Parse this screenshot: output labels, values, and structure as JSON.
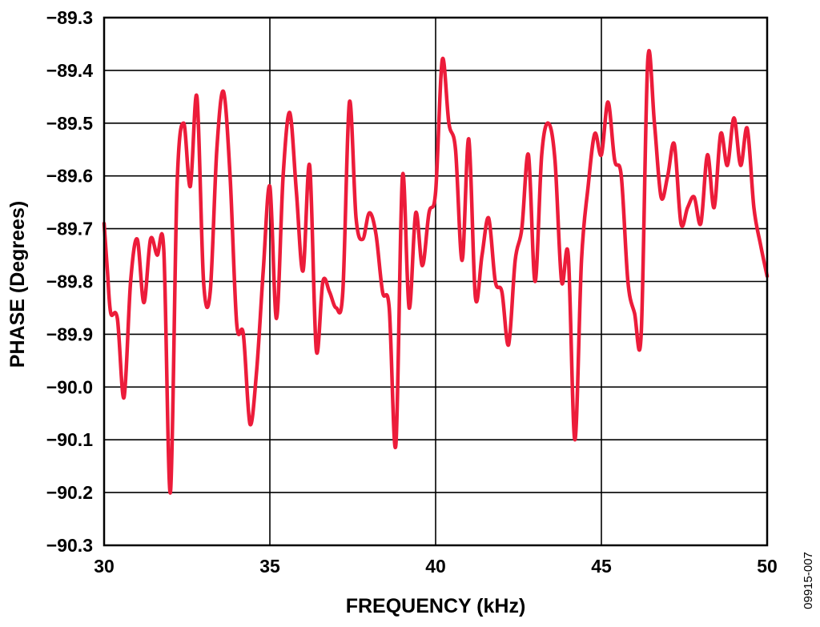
{
  "chart_data": {
    "type": "line",
    "title": "",
    "xlabel": "FREQUENCY (kHz)",
    "ylabel": "PHASE (Degrees)",
    "xlim": [
      30,
      50
    ],
    "ylim": [
      -90.3,
      -89.3
    ],
    "x_ticks": [
      30,
      35,
      40,
      45,
      50
    ],
    "x_tick_labels": [
      "30",
      "35",
      "40",
      "45",
      "50"
    ],
    "y_ticks": [
      -89.3,
      -89.4,
      -89.5,
      -89.6,
      -89.7,
      -89.8,
      -89.9,
      -90.0,
      -90.1,
      -90.2,
      -90.3
    ],
    "y_tick_labels": [
      "−89.3",
      "−89.4",
      "−89.5",
      "−89.6",
      "−89.7",
      "−89.8",
      "−89.9",
      "−90.0",
      "−90.1",
      "−90.2",
      "−90.3"
    ],
    "grid": true,
    "line_color": "#ec1c3a",
    "series": [
      {
        "x": [
          30.0,
          30.1,
          30.2,
          30.4,
          30.6,
          30.8,
          31.0,
          31.2,
          31.4,
          31.6,
          31.8,
          32.0,
          32.2,
          32.4,
          32.6,
          32.8,
          33.0,
          33.2,
          33.4,
          33.6,
          33.8,
          34.0,
          34.2,
          34.4,
          34.6,
          34.8,
          35.0,
          35.2,
          35.4,
          35.6,
          35.8,
          36.0,
          36.2,
          36.4,
          36.6,
          36.8,
          37.0,
          37.2,
          37.4,
          37.6,
          37.8,
          38.0,
          38.2,
          38.4,
          38.6,
          38.8,
          39.0,
          39.2,
          39.4,
          39.6,
          39.8,
          40.0,
          40.2,
          40.4,
          40.6,
          40.8,
          41.0,
          41.2,
          41.4,
          41.6,
          41.8,
          42.0,
          42.2,
          42.4,
          42.6,
          42.8,
          43.0,
          43.2,
          43.4,
          43.6,
          43.8,
          44.0,
          44.2,
          44.4,
          44.6,
          44.8,
          45.0,
          45.2,
          45.4,
          45.6,
          45.8,
          46.0,
          46.2,
          46.4,
          46.6,
          46.8,
          47.0,
          47.2,
          47.4,
          47.6,
          47.8,
          48.0,
          48.2,
          48.4,
          48.6,
          48.8,
          49.0,
          49.2,
          49.4,
          49.6,
          49.8,
          50.0
        ],
        "y": [
          -89.69,
          -89.78,
          -89.86,
          -89.87,
          -90.02,
          -89.8,
          -89.72,
          -89.84,
          -89.72,
          -89.75,
          -89.74,
          -90.2,
          -89.62,
          -89.5,
          -89.62,
          -89.45,
          -89.8,
          -89.82,
          -89.55,
          -89.44,
          -89.6,
          -89.88,
          -89.9,
          -90.07,
          -89.97,
          -89.78,
          -89.62,
          -89.87,
          -89.6,
          -89.48,
          -89.63,
          -89.78,
          -89.58,
          -89.93,
          -89.8,
          -89.82,
          -89.85,
          -89.82,
          -89.46,
          -89.68,
          -89.72,
          -89.67,
          -89.71,
          -89.82,
          -89.85,
          -90.11,
          -89.6,
          -89.85,
          -89.67,
          -89.77,
          -89.67,
          -89.63,
          -89.38,
          -89.5,
          -89.55,
          -89.76,
          -89.53,
          -89.83,
          -89.75,
          -89.68,
          -89.8,
          -89.82,
          -89.92,
          -89.76,
          -89.7,
          -89.56,
          -89.8,
          -89.56,
          -89.5,
          -89.57,
          -89.8,
          -89.75,
          -90.1,
          -89.76,
          -89.62,
          -89.52,
          -89.56,
          -89.46,
          -89.57,
          -89.6,
          -89.8,
          -89.86,
          -89.9,
          -89.38,
          -89.5,
          -89.64,
          -89.6,
          -89.54,
          -89.69,
          -89.66,
          -89.64,
          -89.69,
          -89.56,
          -89.66,
          -89.52,
          -89.58,
          -89.49,
          -89.58,
          -89.51,
          -89.66,
          -89.73,
          -89.79
        ]
      }
    ]
  },
  "figure_id": "09915-007"
}
